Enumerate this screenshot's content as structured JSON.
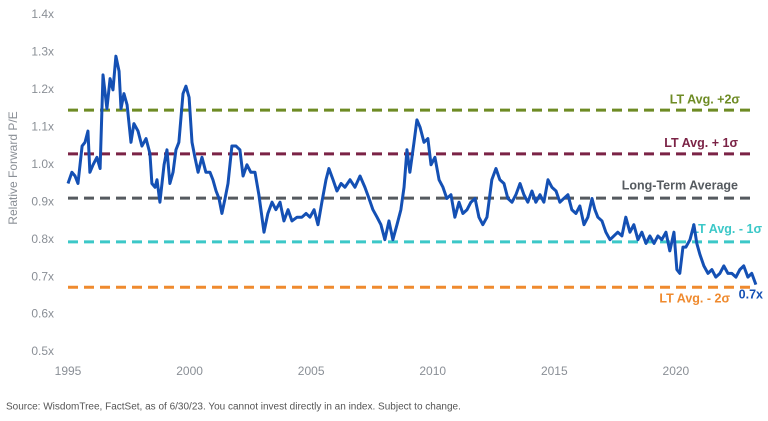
{
  "chart_data": {
    "type": "line",
    "y_label": "Relative Forward P/E",
    "source": "Source: WisdomTree, FactSet, as of 6/30/23. You cannot invest directly in an index. Subject to change.",
    "color": "#1450b4",
    "xlim": [
      1995,
      2023.5
    ],
    "ylim": [
      0.5,
      1.4
    ],
    "xticks": [
      1995,
      2000,
      2005,
      2010,
      2015,
      2020
    ],
    "yticks": [
      {
        "value": 0.5,
        "label": "0.5x"
      },
      {
        "value": 0.6,
        "label": "0.6x"
      },
      {
        "value": 0.7,
        "label": "0.7x"
      },
      {
        "value": 0.8,
        "label": "0.8x"
      },
      {
        "value": 0.9,
        "label": "0.9x"
      },
      {
        "value": 1.0,
        "label": "1.0x"
      },
      {
        "value": 1.1,
        "label": "1.1x"
      },
      {
        "value": 1.2,
        "label": "1.2x"
      },
      {
        "value": 1.3,
        "label": "1.3x"
      },
      {
        "value": 1.4,
        "label": "1.4x"
      }
    ],
    "reference_lines": [
      {
        "name": "LT Avg. +2σ",
        "value": 1.146,
        "color": "#6e8b24"
      },
      {
        "name": "LT Avg. + 1σ",
        "value": 1.029,
        "color": "#7b2346"
      },
      {
        "name": "Long-Term Average",
        "value": 0.911,
        "color": "#555a5f"
      },
      {
        "name": "LT Avg. - 1σ",
        "value": 0.794,
        "color": "#3cc8c8"
      },
      {
        "name": "LT Avg. - 2σ",
        "value": 0.673,
        "color": "#ef8a2e"
      }
    ],
    "annotation": {
      "x": 2023.5,
      "value": 0.7,
      "label": "0.7x",
      "color": "#1450b4"
    },
    "x": [
      1995.0,
      1995.16,
      1995.29,
      1995.41,
      1995.58,
      1995.7,
      1995.82,
      1995.9,
      1996.03,
      1996.19,
      1996.32,
      1996.44,
      1996.6,
      1996.73,
      1996.85,
      1996.97,
      1997.1,
      1997.18,
      1997.3,
      1997.43,
      1997.59,
      1997.71,
      1997.88,
      1998.04,
      1998.21,
      1998.37,
      1998.45,
      1998.58,
      1998.66,
      1998.78,
      1998.95,
      1999.07,
      1999.19,
      1999.32,
      1999.44,
      1999.56,
      1999.73,
      1999.85,
      1999.98,
      2000.1,
      2000.22,
      2000.35,
      2000.51,
      2000.67,
      2000.84,
      2000.96,
      2001.09,
      2001.21,
      2001.33,
      2001.46,
      2001.58,
      2001.74,
      2001.91,
      2002.07,
      2002.2,
      2002.36,
      2002.52,
      2002.69,
      2002.85,
      2003.06,
      2003.22,
      2003.39,
      2003.55,
      2003.72,
      2003.88,
      2004.05,
      2004.21,
      2004.42,
      2004.62,
      2004.79,
      2004.95,
      2005.12,
      2005.28,
      2005.44,
      2005.61,
      2005.73,
      2005.9,
      2006.06,
      2006.23,
      2006.39,
      2006.6,
      2006.8,
      2007.01,
      2007.21,
      2007.38,
      2007.54,
      2007.71,
      2007.87,
      2008.03,
      2008.2,
      2008.36,
      2008.53,
      2008.69,
      2008.82,
      2008.94,
      2009.06,
      2009.23,
      2009.35,
      2009.48,
      2009.64,
      2009.8,
      2009.93,
      2010.09,
      2010.26,
      2010.42,
      2010.58,
      2010.75,
      2010.91,
      2011.08,
      2011.24,
      2011.41,
      2011.57,
      2011.74,
      2011.9,
      2012.06,
      2012.23,
      2012.43,
      2012.6,
      2012.76,
      2012.93,
      2013.09,
      2013.26,
      2013.42,
      2013.59,
      2013.75,
      2013.91,
      2014.08,
      2014.24,
      2014.41,
      2014.57,
      2014.74,
      2014.9,
      2015.07,
      2015.23,
      2015.39,
      2015.56,
      2015.72,
      2015.89,
      2016.05,
      2016.22,
      2016.38,
      2016.55,
      2016.67,
      2016.79,
      2016.96,
      2017.12,
      2017.29,
      2017.45,
      2017.61,
      2017.78,
      2017.94,
      2018.11,
      2018.27,
      2018.44,
      2018.6,
      2018.77,
      2018.93,
      2019.1,
      2019.26,
      2019.42,
      2019.59,
      2019.75,
      2019.92,
      2020.04,
      2020.16,
      2020.29,
      2020.41,
      2020.58,
      2020.74,
      2020.86,
      2020.99,
      2021.15,
      2021.32,
      2021.48,
      2021.64,
      2021.81,
      2021.97,
      2022.14,
      2022.3,
      2022.47,
      2022.63,
      2022.79,
      2022.96,
      2023.12,
      2023.29
    ],
    "values": [
      0.95,
      0.98,
      0.97,
      0.95,
      1.05,
      1.06,
      1.09,
      0.98,
      1.0,
      1.02,
      0.99,
      1.24,
      1.15,
      1.23,
      1.2,
      1.29,
      1.25,
      1.15,
      1.19,
      1.16,
      1.06,
      1.11,
      1.09,
      1.05,
      1.07,
      1.03,
      0.95,
      0.94,
      0.96,
      0.9,
      1.0,
      1.04,
      0.95,
      0.98,
      1.04,
      1.06,
      1.19,
      1.21,
      1.18,
      1.06,
      1.02,
      0.98,
      1.02,
      0.98,
      0.98,
      0.96,
      0.93,
      0.91,
      0.87,
      0.91,
      0.95,
      1.05,
      1.05,
      1.04,
      0.97,
      1.0,
      0.98,
      0.98,
      0.92,
      0.82,
      0.87,
      0.9,
      0.88,
      0.9,
      0.85,
      0.88,
      0.85,
      0.86,
      0.86,
      0.87,
      0.86,
      0.88,
      0.84,
      0.9,
      0.96,
      0.99,
      0.96,
      0.93,
      0.95,
      0.94,
      0.96,
      0.94,
      0.97,
      0.94,
      0.91,
      0.88,
      0.86,
      0.84,
      0.8,
      0.85,
      0.8,
      0.84,
      0.88,
      0.94,
      1.04,
      0.98,
      1.06,
      1.12,
      1.1,
      1.06,
      1.07,
      1.0,
      1.02,
      0.96,
      0.94,
      0.91,
      0.92,
      0.86,
      0.9,
      0.87,
      0.88,
      0.9,
      0.91,
      0.86,
      0.84,
      0.86,
      0.96,
      0.99,
      0.96,
      0.95,
      0.91,
      0.9,
      0.92,
      0.95,
      0.92,
      0.9,
      0.93,
      0.9,
      0.92,
      0.9,
      0.96,
      0.94,
      0.93,
      0.9,
      0.91,
      0.92,
      0.88,
      0.87,
      0.89,
      0.84,
      0.86,
      0.91,
      0.88,
      0.86,
      0.85,
      0.82,
      0.8,
      0.81,
      0.82,
      0.81,
      0.86,
      0.82,
      0.84,
      0.8,
      0.82,
      0.79,
      0.81,
      0.79,
      0.81,
      0.8,
      0.82,
      0.77,
      0.82,
      0.72,
      0.71,
      0.78,
      0.78,
      0.8,
      0.84,
      0.79,
      0.76,
      0.73,
      0.71,
      0.72,
      0.7,
      0.71,
      0.73,
      0.71,
      0.71,
      0.7,
      0.72,
      0.73,
      0.7,
      0.71,
      0.68
    ]
  }
}
